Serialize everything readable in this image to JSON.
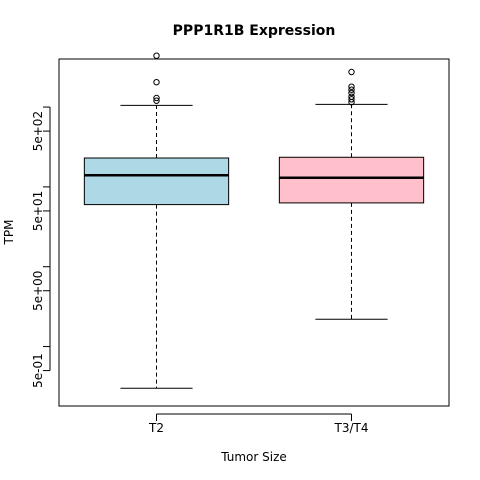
{
  "chart_data": {
    "type": "boxplot",
    "title": "PPP1R1B Expression",
    "xlabel": "Tumor Size",
    "ylabel": "TPM",
    "y_scale": "log10",
    "y_ticks": [
      {
        "value": 0.5,
        "label": "5e-01"
      },
      {
        "value": 5,
        "label": "5e+00"
      },
      {
        "value": 50,
        "label": "5e+01"
      },
      {
        "value": 500,
        "label": "5e+02"
      }
    ],
    "y_minor_ticks": [
      1,
      10,
      100,
      1000
    ],
    "ylim": [
      0.18,
      4000
    ],
    "grid": false,
    "categories": [
      "T2",
      "T3/T4"
    ],
    "boxes": [
      {
        "name": "T2",
        "color": "#add8e6",
        "whisker_low": 0.3,
        "q1": 60,
        "median": 140,
        "q3": 230,
        "whisker_high": 1050,
        "outliers": [
          1200,
          1300,
          2050,
          4400
        ]
      },
      {
        "name": "T3/T4",
        "color": "#ffc0cb",
        "whisker_low": 2.2,
        "q1": 63,
        "median": 130,
        "q3": 235,
        "whisker_high": 1080,
        "outliers": [
          1150,
          1250,
          1350,
          1500,
          1650,
          1800,
          2750
        ]
      }
    ]
  }
}
